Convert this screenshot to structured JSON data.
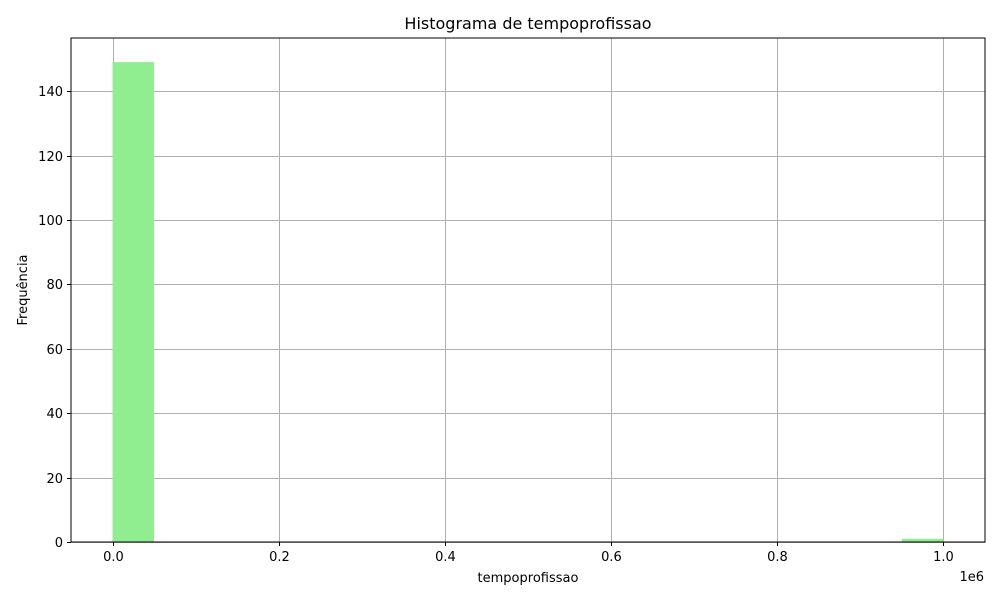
{
  "chart_data": {
    "type": "bar",
    "title": "Histograma de tempoprofissao",
    "xlabel": "tempoprofissao",
    "ylabel": "Frequência",
    "x_scale_label": "1e6",
    "xlim": [
      -0.05,
      1.05
    ],
    "ylim": [
      0,
      156.5
    ],
    "x_ticks": [
      0.0,
      0.2,
      0.4,
      0.6,
      0.8,
      1.0
    ],
    "x_tick_labels": [
      "0.0",
      "0.2",
      "0.4",
      "0.6",
      "0.8",
      "1.0"
    ],
    "y_ticks": [
      0,
      20,
      40,
      60,
      80,
      100,
      120,
      140
    ],
    "y_tick_labels": [
      "0",
      "20",
      "40",
      "60",
      "80",
      "100",
      "120",
      "140"
    ],
    "grid": true,
    "bar_color": "#90ee90",
    "bins": [
      {
        "x0": 0.0,
        "x1": 0.05,
        "count": 149
      },
      {
        "x0": 0.05,
        "x1": 0.1,
        "count": 0
      },
      {
        "x0": 0.1,
        "x1": 0.15,
        "count": 0
      },
      {
        "x0": 0.15,
        "x1": 0.2,
        "count": 0
      },
      {
        "x0": 0.2,
        "x1": 0.25,
        "count": 0
      },
      {
        "x0": 0.25,
        "x1": 0.3,
        "count": 0
      },
      {
        "x0": 0.3,
        "x1": 0.35,
        "count": 0
      },
      {
        "x0": 0.35,
        "x1": 0.4,
        "count": 0
      },
      {
        "x0": 0.4,
        "x1": 0.45,
        "count": 0
      },
      {
        "x0": 0.45,
        "x1": 0.5,
        "count": 0
      },
      {
        "x0": 0.5,
        "x1": 0.55,
        "count": 0
      },
      {
        "x0": 0.55,
        "x1": 0.6,
        "count": 0
      },
      {
        "x0": 0.6,
        "x1": 0.65,
        "count": 0
      },
      {
        "x0": 0.65,
        "x1": 0.7,
        "count": 0
      },
      {
        "x0": 0.7,
        "x1": 0.75,
        "count": 0
      },
      {
        "x0": 0.75,
        "x1": 0.8,
        "count": 0
      },
      {
        "x0": 0.8,
        "x1": 0.85,
        "count": 0
      },
      {
        "x0": 0.85,
        "x1": 0.9,
        "count": 0
      },
      {
        "x0": 0.9,
        "x1": 0.95,
        "count": 0
      },
      {
        "x0": 0.95,
        "x1": 1.0,
        "count": 1
      }
    ]
  }
}
